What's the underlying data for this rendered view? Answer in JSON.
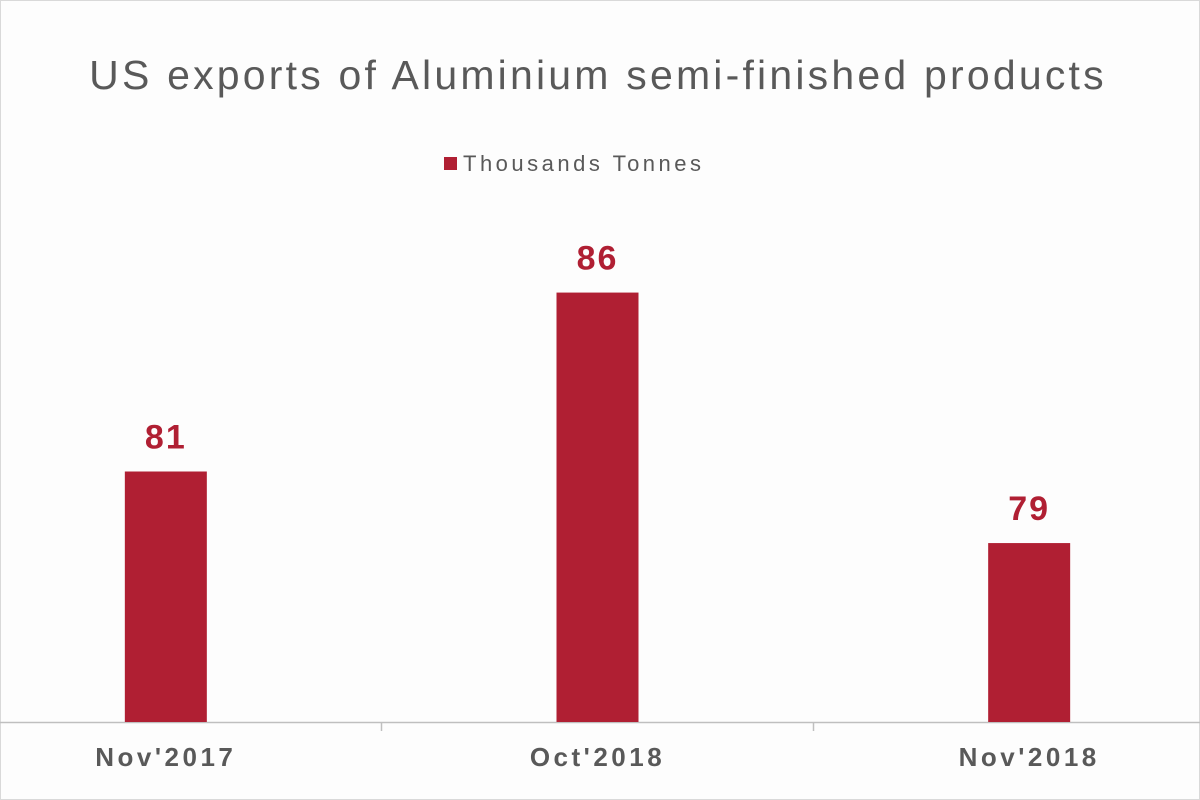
{
  "chart_data": {
    "type": "bar",
    "title": "US exports of Aluminium semi-finished products",
    "categories": [
      "Nov'2017",
      "Oct'2018",
      "Nov'2018"
    ],
    "series": [
      {
        "name": "Thousands Tonnes",
        "color": "#b01f33",
        "values": [
          81,
          86,
          79
        ]
      }
    ],
    "ylim": [
      74,
      88
    ]
  }
}
